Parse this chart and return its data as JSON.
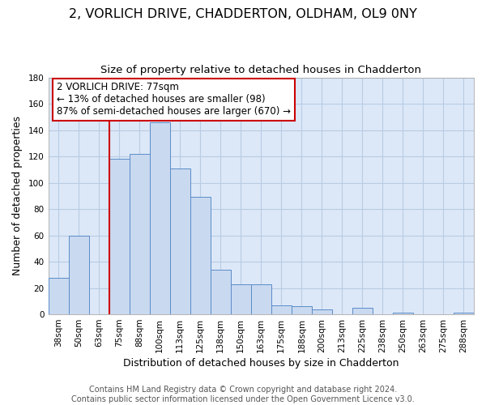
{
  "title": "2, VORLICH DRIVE, CHADDERTON, OLDHAM, OL9 0NY",
  "subtitle": "Size of property relative to detached houses in Chadderton",
  "xlabel": "Distribution of detached houses by size in Chadderton",
  "ylabel": "Number of detached properties",
  "footer_line1": "Contains HM Land Registry data © Crown copyright and database right 2024.",
  "footer_line2": "Contains public sector information licensed under the Open Government Licence v3.0.",
  "annotation_line1": "2 VORLICH DRIVE: 77sqm",
  "annotation_line2": "← 13% of detached houses are smaller (98)",
  "annotation_line3": "87% of semi-detached houses are larger (670) →",
  "bar_labels": [
    "38sqm",
    "50sqm",
    "63sqm",
    "75sqm",
    "88sqm",
    "100sqm",
    "113sqm",
    "125sqm",
    "138sqm",
    "150sqm",
    "163sqm",
    "175sqm",
    "188sqm",
    "200sqm",
    "213sqm",
    "225sqm",
    "238sqm",
    "250sqm",
    "263sqm",
    "275sqm",
    "288sqm"
  ],
  "bar_heights": [
    28,
    60,
    0,
    118,
    122,
    146,
    111,
    89,
    34,
    23,
    23,
    7,
    6,
    4,
    0,
    5,
    0,
    1,
    0,
    0,
    1
  ],
  "bar_color": "#c9d9f0",
  "bar_edge_color": "#5b8cc8",
  "highlight_line_color": "#cc0000",
  "highlight_line_index": 3,
  "ylim": [
    0,
    180
  ],
  "yticks": [
    0,
    20,
    40,
    60,
    80,
    100,
    120,
    140,
    160,
    180
  ],
  "plot_bg_color": "#dce8f8",
  "fig_bg_color": "#ffffff",
  "grid_color": "#b8cce4",
  "annotation_box_edge_color": "#cc0000",
  "title_fontsize": 11.5,
  "subtitle_fontsize": 9.5,
  "axis_label_fontsize": 9,
  "tick_fontsize": 7.5,
  "annotation_fontsize": 8.5,
  "footer_fontsize": 7
}
